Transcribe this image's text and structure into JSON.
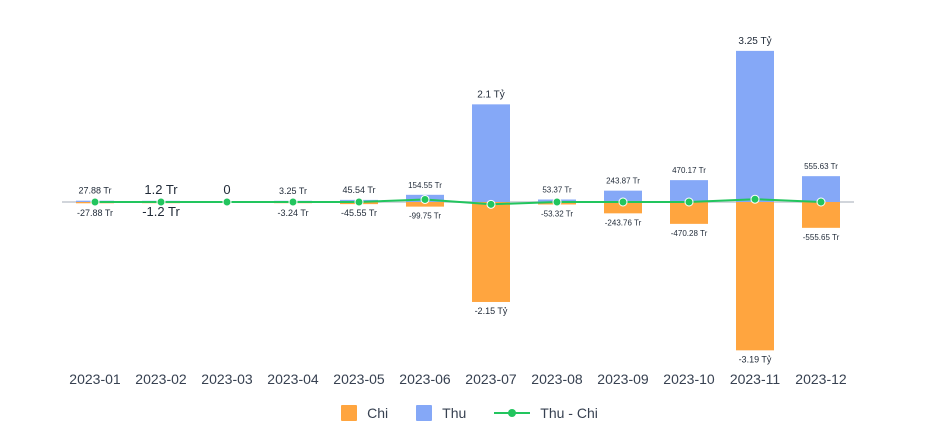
{
  "chart_data": {
    "type": "bar",
    "stacked": true,
    "categories": [
      "2023-01",
      "2023-02",
      "2023-03",
      "2023-04",
      "2023-05",
      "2023-06",
      "2023-07",
      "2023-08",
      "2023-09",
      "2023-10",
      "2023-11",
      "2023-12"
    ],
    "series": [
      {
        "name": "Chi",
        "color": "#ffa53f",
        "values_million": [
          -27.88,
          -1.2,
          0,
          -3.24,
          -45.55,
          -99.75,
          -2150,
          -53.32,
          -243.76,
          -470.28,
          -3190,
          -555.65
        ],
        "labels": [
          "-27.88 Tr",
          "-1.2 Tr",
          "",
          "-3.24 Tr",
          "-45.55 Tr",
          "-99.75 Tr",
          "-2.15 Tỷ",
          "-53.32 Tr",
          "-243.76 Tr",
          "-470.28 Tr",
          "-3.19 Tỷ",
          "-555.65 Tr"
        ]
      },
      {
        "name": "Thu",
        "color": "#85a8f7",
        "values_million": [
          27.88,
          1.2,
          0,
          3.25,
          45.54,
          154.55,
          2100,
          53.37,
          243.87,
          470.17,
          3250,
          555.63
        ],
        "labels": [
          "27.88 Tr",
          "1.2 Tr",
          "0",
          "3.25 Tr",
          "45.54 Tr",
          "154.55 Tr",
          "2.1 Tỷ",
          "53.37 Tr",
          "243.87 Tr",
          "470.17 Tr",
          "3.25 Tỷ",
          "555.63 Tr"
        ]
      },
      {
        "name": "Thu - Chi",
        "type": "line",
        "color": "#22c55e",
        "values_million": [
          0,
          0,
          0,
          0.01,
          -0.01,
          54.8,
          -50,
          0.05,
          0.11,
          -0.11,
          60,
          -0.02
        ]
      }
    ],
    "ylim_million": [
      -3300,
      3300
    ],
    "grid": false,
    "legend_position": "bottom"
  },
  "legend": {
    "chi": "Chi",
    "thu": "Thu",
    "net": "Thu - Chi"
  }
}
